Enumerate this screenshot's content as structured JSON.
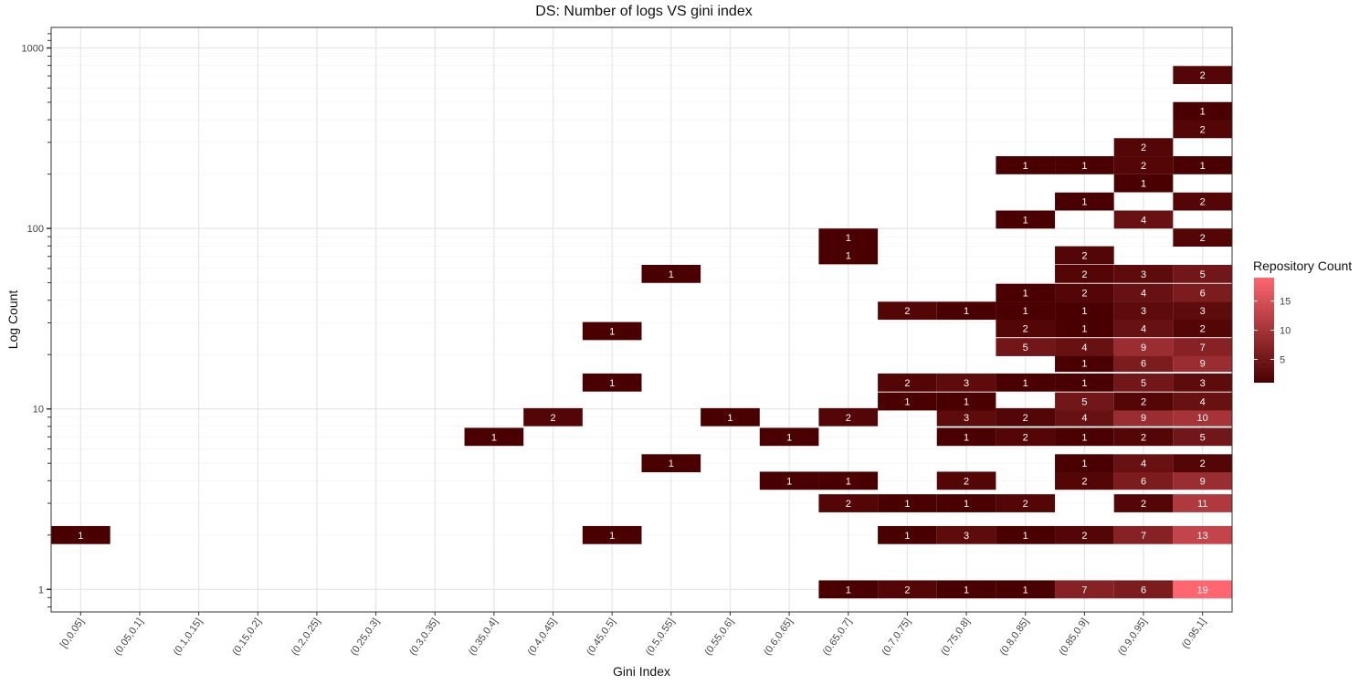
{
  "chart_data": {
    "type": "heatmap",
    "title": "DS: Number of logs VS gini index",
    "xlabel": "Gini Index",
    "ylabel": "Log Count",
    "x_scale": "categorical",
    "y_scale": "log10",
    "ylim": [
      0.75,
      1300
    ],
    "grid": true,
    "legend_position": "right",
    "categories": [
      "[0,0.05]",
      "(0.05,0.1]",
      "(0.1,0.15]",
      "(0.15,0.2]",
      "(0.2,0.25]",
      "(0.25,0.3]",
      "(0.3,0.35]",
      "(0.35,0.4]",
      "(0.4,0.45]",
      "(0.45,0.5]",
      "(0.5,0.55]",
      "(0.55,0.6]",
      "(0.6,0.65]",
      "(0.65,0.7]",
      "(0.7,0.75]",
      "(0.75,0.8]",
      "(0.8,0.85]",
      "(0.85,0.9]",
      "(0.9,0.95]",
      "(0.95,1]"
    ],
    "y_ticks": [
      1,
      10,
      100,
      1000
    ],
    "y_tick_labels": [
      "1",
      "10",
      "100",
      "1000"
    ],
    "legend": {
      "title": "Repository Count",
      "ticks": [
        5,
        10,
        15
      ],
      "range": [
        1,
        19
      ],
      "low_color": "#4a0000",
      "high_color": "#ff6670"
    },
    "cells": [
      {
        "x": "[0,0.05]",
        "y": 2,
        "count": 1
      },
      {
        "x": "(0.35,0.4]",
        "y": 7,
        "count": 1
      },
      {
        "x": "(0.4,0.45]",
        "y": 9,
        "count": 2
      },
      {
        "x": "(0.45,0.5]",
        "y": 2,
        "count": 1
      },
      {
        "x": "(0.45,0.5]",
        "y": 14,
        "count": 1
      },
      {
        "x": "(0.45,0.5]",
        "y": 27,
        "count": 1
      },
      {
        "x": "(0.5,0.55]",
        "y": 5,
        "count": 1
      },
      {
        "x": "(0.5,0.55]",
        "y": 56,
        "count": 1
      },
      {
        "x": "(0.55,0.6]",
        "y": 9,
        "count": 1
      },
      {
        "x": "(0.6,0.65]",
        "y": 4,
        "count": 1
      },
      {
        "x": "(0.6,0.65]",
        "y": 7,
        "count": 1
      },
      {
        "x": "(0.65,0.7]",
        "y": 1,
        "count": 1
      },
      {
        "x": "(0.65,0.7]",
        "y": 3,
        "count": 2
      },
      {
        "x": "(0.65,0.7]",
        "y": 4,
        "count": 1
      },
      {
        "x": "(0.65,0.7]",
        "y": 9,
        "count": 2
      },
      {
        "x": "(0.65,0.7]",
        "y": 71,
        "count": 1
      },
      {
        "x": "(0.65,0.7]",
        "y": 89,
        "count": 1
      },
      {
        "x": "(0.7,0.75]",
        "y": 1,
        "count": 2
      },
      {
        "x": "(0.7,0.75]",
        "y": 2,
        "count": 1
      },
      {
        "x": "(0.7,0.75]",
        "y": 3,
        "count": 1
      },
      {
        "x": "(0.7,0.75]",
        "y": 11,
        "count": 1
      },
      {
        "x": "(0.7,0.75]",
        "y": 14,
        "count": 2
      },
      {
        "x": "(0.7,0.75]",
        "y": 35,
        "count": 2
      },
      {
        "x": "(0.75,0.8]",
        "y": 1,
        "count": 1
      },
      {
        "x": "(0.75,0.8]",
        "y": 2,
        "count": 3
      },
      {
        "x": "(0.75,0.8]",
        "y": 3,
        "count": 1
      },
      {
        "x": "(0.75,0.8]",
        "y": 4,
        "count": 2
      },
      {
        "x": "(0.75,0.8]",
        "y": 7,
        "count": 1
      },
      {
        "x": "(0.75,0.8]",
        "y": 9,
        "count": 3
      },
      {
        "x": "(0.75,0.8]",
        "y": 11,
        "count": 1
      },
      {
        "x": "(0.75,0.8]",
        "y": 14,
        "count": 3
      },
      {
        "x": "(0.75,0.8]",
        "y": 35,
        "count": 1
      },
      {
        "x": "(0.8,0.85]",
        "y": 1,
        "count": 1
      },
      {
        "x": "(0.8,0.85]",
        "y": 2,
        "count": 1
      },
      {
        "x": "(0.8,0.85]",
        "y": 3,
        "count": 2
      },
      {
        "x": "(0.8,0.85]",
        "y": 7,
        "count": 2
      },
      {
        "x": "(0.8,0.85]",
        "y": 9,
        "count": 2
      },
      {
        "x": "(0.8,0.85]",
        "y": 14,
        "count": 1
      },
      {
        "x": "(0.8,0.85]",
        "y": 22,
        "count": 5
      },
      {
        "x": "(0.8,0.85]",
        "y": 28,
        "count": 2
      },
      {
        "x": "(0.8,0.85]",
        "y": 35,
        "count": 1
      },
      {
        "x": "(0.8,0.85]",
        "y": 44,
        "count": 1
      },
      {
        "x": "(0.8,0.85]",
        "y": 112,
        "count": 1
      },
      {
        "x": "(0.8,0.85]",
        "y": 224,
        "count": 1
      },
      {
        "x": "(0.85,0.9]",
        "y": 1,
        "count": 7
      },
      {
        "x": "(0.85,0.9]",
        "y": 2,
        "count": 2
      },
      {
        "x": "(0.85,0.9]",
        "y": 4,
        "count": 2
      },
      {
        "x": "(0.85,0.9]",
        "y": 5,
        "count": 1
      },
      {
        "x": "(0.85,0.9]",
        "y": 7,
        "count": 1
      },
      {
        "x": "(0.85,0.9]",
        "y": 9,
        "count": 4
      },
      {
        "x": "(0.85,0.9]",
        "y": 11,
        "count": 5
      },
      {
        "x": "(0.85,0.9]",
        "y": 14,
        "count": 1
      },
      {
        "x": "(0.85,0.9]",
        "y": 18,
        "count": 1
      },
      {
        "x": "(0.85,0.9]",
        "y": 22,
        "count": 4
      },
      {
        "x": "(0.85,0.9]",
        "y": 28,
        "count": 1
      },
      {
        "x": "(0.85,0.9]",
        "y": 35,
        "count": 1
      },
      {
        "x": "(0.85,0.9]",
        "y": 44,
        "count": 2
      },
      {
        "x": "(0.85,0.9]",
        "y": 56,
        "count": 2
      },
      {
        "x": "(0.85,0.9]",
        "y": 71,
        "count": 2
      },
      {
        "x": "(0.85,0.9]",
        "y": 141,
        "count": 1
      },
      {
        "x": "(0.85,0.9]",
        "y": 224,
        "count": 1
      },
      {
        "x": "(0.9,0.95]",
        "y": 1,
        "count": 6
      },
      {
        "x": "(0.9,0.95]",
        "y": 2,
        "count": 7
      },
      {
        "x": "(0.9,0.95]",
        "y": 3,
        "count": 2
      },
      {
        "x": "(0.9,0.95]",
        "y": 4,
        "count": 6
      },
      {
        "x": "(0.9,0.95]",
        "y": 5,
        "count": 4
      },
      {
        "x": "(0.9,0.95]",
        "y": 7,
        "count": 2
      },
      {
        "x": "(0.9,0.95]",
        "y": 9,
        "count": 9
      },
      {
        "x": "(0.9,0.95]",
        "y": 11,
        "count": 2
      },
      {
        "x": "(0.9,0.95]",
        "y": 14,
        "count": 5
      },
      {
        "x": "(0.9,0.95]",
        "y": 18,
        "count": 6
      },
      {
        "x": "(0.9,0.95]",
        "y": 22,
        "count": 9
      },
      {
        "x": "(0.9,0.95]",
        "y": 28,
        "count": 4
      },
      {
        "x": "(0.9,0.95]",
        "y": 35,
        "count": 3
      },
      {
        "x": "(0.9,0.95]",
        "y": 44,
        "count": 4
      },
      {
        "x": "(0.9,0.95]",
        "y": 56,
        "count": 3
      },
      {
        "x": "(0.9,0.95]",
        "y": 112,
        "count": 4
      },
      {
        "x": "(0.9,0.95]",
        "y": 178,
        "count": 1
      },
      {
        "x": "(0.9,0.95]",
        "y": 224,
        "count": 2
      },
      {
        "x": "(0.9,0.95]",
        "y": 282,
        "count": 2
      },
      {
        "x": "(0.95,1]",
        "y": 1,
        "count": 19
      },
      {
        "x": "(0.95,1]",
        "y": 2,
        "count": 13
      },
      {
        "x": "(0.95,1]",
        "y": 3,
        "count": 11
      },
      {
        "x": "(0.95,1]",
        "y": 4,
        "count": 9
      },
      {
        "x": "(0.95,1]",
        "y": 5,
        "count": 2
      },
      {
        "x": "(0.95,1]",
        "y": 7,
        "count": 5
      },
      {
        "x": "(0.95,1]",
        "y": 9,
        "count": 10
      },
      {
        "x": "(0.95,1]",
        "y": 11,
        "count": 4
      },
      {
        "x": "(0.95,1]",
        "y": 14,
        "count": 3
      },
      {
        "x": "(0.95,1]",
        "y": 18,
        "count": 9
      },
      {
        "x": "(0.95,1]",
        "y": 22,
        "count": 7
      },
      {
        "x": "(0.95,1]",
        "y": 28,
        "count": 2
      },
      {
        "x": "(0.95,1]",
        "y": 35,
        "count": 3
      },
      {
        "x": "(0.95,1]",
        "y": 44,
        "count": 6
      },
      {
        "x": "(0.95,1]",
        "y": 56,
        "count": 5
      },
      {
        "x": "(0.95,1]",
        "y": 89,
        "count": 2
      },
      {
        "x": "(0.95,1]",
        "y": 141,
        "count": 2
      },
      {
        "x": "(0.95,1]",
        "y": 224,
        "count": 1
      },
      {
        "x": "(0.95,1]",
        "y": 355,
        "count": 2
      },
      {
        "x": "(0.95,1]",
        "y": 447,
        "count": 1
      },
      {
        "x": "(0.95,1]",
        "y": 708,
        "count": 2
      }
    ]
  }
}
